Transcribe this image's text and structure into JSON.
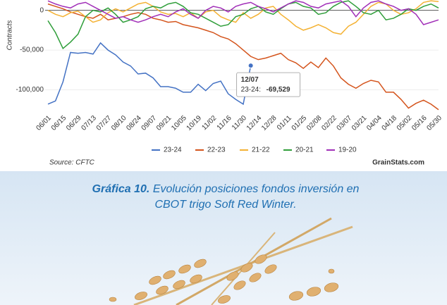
{
  "chart_data": {
    "type": "line",
    "y_label": "Contracts",
    "categories": [
      "06/01",
      null,
      "06/15",
      null,
      "06/29",
      null,
      "07/13",
      null,
      "07/27",
      null,
      "08/10",
      null,
      "08/24",
      null,
      "09/07",
      null,
      "09/21",
      null,
      "10/05",
      null,
      "10/19",
      null,
      "11/02",
      null,
      "11/16",
      null,
      "11/30",
      null,
      "12/14",
      null,
      "12/28",
      null,
      "01/11",
      null,
      "01/25",
      null,
      "02/08",
      null,
      "02/22",
      null,
      "03/07",
      null,
      "03/21",
      null,
      "04/04",
      null,
      "04/18",
      null,
      "05/02",
      null,
      "05/16",
      null,
      "05/30"
    ],
    "series": [
      {
        "name": "23-24",
        "color": "#4472c4",
        "values": [
          -118000,
          -114000,
          -90000,
          -53000,
          -54000,
          -53000,
          -55000,
          -41000,
          -50000,
          -56000,
          -65000,
          -70000,
          -80000,
          -79000,
          -85000,
          -96000,
          -96000,
          -98000,
          -103000,
          -103000,
          -93000,
          -101000,
          -92000,
          -89000,
          -105000,
          -112000,
          -118000,
          -69529,
          null,
          null,
          null,
          null,
          null,
          null,
          null,
          null,
          null,
          null,
          null,
          null,
          null,
          null,
          null,
          null,
          null,
          null,
          null,
          null,
          null,
          null,
          null,
          null,
          null
        ]
      },
      {
        "name": "22-23",
        "color": "#d4541c",
        "values": [
          8000,
          5000,
          2000,
          -2000,
          -5000,
          -8000,
          -10000,
          -5000,
          -12000,
          -10000,
          -8000,
          -5000,
          -3000,
          -5000,
          -10000,
          -12000,
          -15000,
          -14000,
          -18000,
          -20000,
          -22000,
          -25000,
          -28000,
          -33000,
          -36000,
          -42000,
          -50000,
          -58000,
          -62000,
          -60000,
          -57000,
          -54000,
          -62000,
          -66000,
          -73000,
          -65000,
          -72000,
          -60000,
          -70000,
          -85000,
          -93000,
          -98000,
          -92000,
          -88000,
          -90000,
          -103000,
          -103000,
          -112000,
          -123000,
          -117000,
          -113000,
          -118000,
          -125000
        ]
      },
      {
        "name": "21-22",
        "color": "#f4b234",
        "values": [
          0,
          -5000,
          -8000,
          -3000,
          -1000,
          -8000,
          -15000,
          -12000,
          -3000,
          2000,
          -2000,
          3000,
          8000,
          10000,
          5000,
          -2000,
          -5000,
          -4000,
          -8000,
          -3000,
          -10000,
          -2000,
          0,
          -8000,
          -12000,
          -15000,
          -3000,
          -10000,
          -5000,
          3000,
          5000,
          -5000,
          -12000,
          -20000,
          -25000,
          -22000,
          -18000,
          -22000,
          -28000,
          -30000,
          -20000,
          -15000,
          -5000,
          5000,
          10000,
          8000,
          0,
          -5000,
          -3000,
          2000,
          10000,
          12000,
          11000
        ]
      },
      {
        "name": "20-21",
        "color": "#2f9e3a",
        "values": [
          -13000,
          -28000,
          -48000,
          -40000,
          -30000,
          -8000,
          0,
          -2000,
          3000,
          -5000,
          -15000,
          -12000,
          -8000,
          2000,
          5000,
          3000,
          8000,
          10000,
          5000,
          -3000,
          -5000,
          -10000,
          -15000,
          -20000,
          -18000,
          -8000,
          -5000,
          2000,
          5000,
          -2000,
          -5000,
          2000,
          8000,
          10000,
          5000,
          3000,
          -5000,
          -3000,
          5000,
          10000,
          12000,
          5000,
          -3000,
          -5000,
          0,
          -12000,
          -10000,
          -5000,
          2000,
          0,
          5000,
          8000,
          3000
        ]
      },
      {
        "name": "19-20",
        "color": "#a12fb8",
        "values": [
          12000,
          8000,
          5000,
          3000,
          8000,
          10000,
          5000,
          0,
          -5000,
          -10000,
          -8000,
          -12000,
          -15000,
          -12000,
          -8000,
          -5000,
          -8000,
          -2000,
          2000,
          -5000,
          -10000,
          0,
          5000,
          3000,
          -2000,
          5000,
          8000,
          10000,
          5000,
          2000,
          -2000,
          3000,
          8000,
          12000,
          10000,
          5000,
          3000,
          8000,
          10000,
          12000,
          5000,
          -8000,
          3000,
          10000,
          12000,
          8000,
          5000,
          0,
          2000,
          -5000,
          -18000,
          -15000,
          -12000
        ]
      }
    ],
    "ylim": [
      -127000,
      13000
    ],
    "yticks": [
      {
        "value": -100000,
        "label": "-100,000"
      },
      {
        "value": -50000,
        "label": "-50,000"
      },
      0
    ],
    "grid": true,
    "tooltip": {
      "title": "12/07",
      "label": "23-24:",
      "value_label": "-69,529"
    },
    "source": "Source: CFTC",
    "brand": "GrainStats.com"
  },
  "caption": {
    "label": "Gráfica 10.",
    "lines": [
      "Evolución posiciones fondos inversión en",
      "CBOT trigo Soft Red Winter."
    ]
  }
}
